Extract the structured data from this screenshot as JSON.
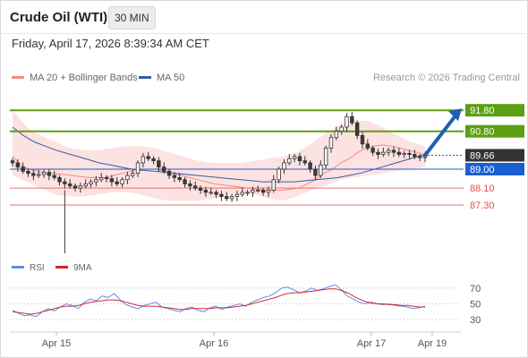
{
  "header": {
    "instrument": "Crude Oil (WTI)",
    "timeframe": "30 MIN",
    "timestamp": "Friday, April 17, 2026 8:39:34 AM CET"
  },
  "legend": {
    "ma20": {
      "label": "MA 20 + Bollinger Bands",
      "color": "#f28b82"
    },
    "ma50": {
      "label": "MA 50",
      "color": "#2f5f9e"
    },
    "credit": "Research © 2026 Trading Central"
  },
  "rsi_legend": {
    "rsi": {
      "label": "RSI",
      "color": "#5b8def"
    },
    "ma9": {
      "label": "9MA",
      "color": "#d62728"
    }
  },
  "colors": {
    "resistance": "#5aa012",
    "pivot": "#1a5fd1",
    "support": "#e57373",
    "last_price": "#333333",
    "arrow": "#1f5fb3",
    "band_fill": "#fde2e2",
    "bull": "#3a3a3a",
    "bear": "#3a3a3a"
  },
  "chart_data": {
    "type": "candlestick",
    "x_ticks": [
      "Apr 15",
      "Apr 16",
      "Apr 17",
      "Apr 19"
    ],
    "price_range": [
      85.0,
      93.0
    ],
    "levels": {
      "resistance": [
        91.8,
        90.8
      ],
      "last": 89.66,
      "pivot": 89.0,
      "support": [
        88.1,
        87.3
      ]
    },
    "level_labels": {
      "r1": "91.80",
      "r2": "90.80",
      "last": "89.66",
      "pivot": "89.00",
      "s1": "88.10",
      "s2": "87.30"
    },
    "bias": "bullish",
    "close": [
      89.3,
      89.1,
      88.9,
      88.8,
      88.7,
      88.75,
      88.85,
      88.7,
      88.6,
      88.4,
      88.3,
      88.2,
      88.1,
      88.2,
      88.3,
      88.4,
      88.5,
      88.6,
      88.55,
      88.4,
      88.3,
      88.5,
      88.7,
      88.8,
      89.3,
      89.6,
      89.5,
      89.4,
      89.1,
      88.9,
      88.7,
      88.6,
      88.5,
      88.3,
      88.2,
      88.1,
      88.0,
      87.9,
      87.9,
      87.8,
      87.7,
      87.6,
      87.7,
      87.8,
      87.9,
      87.9,
      88.0,
      88.0,
      87.9,
      88.0,
      88.5,
      89.0,
      89.3,
      89.5,
      89.6,
      89.4,
      89.3,
      89.0,
      88.7,
      89.2,
      90.0,
      90.5,
      90.8,
      91.0,
      91.5,
      91.2,
      90.6,
      90.2,
      90.0,
      89.8,
      89.7,
      89.8,
      89.9,
      89.8,
      89.7,
      89.75,
      89.7,
      89.6,
      89.55,
      89.66
    ],
    "ma20": [
      89.6,
      89.2,
      89.0,
      88.9,
      88.8,
      88.8,
      88.75,
      88.7,
      88.65,
      88.6,
      88.6,
      88.6,
      88.7,
      88.8,
      88.9,
      89.0,
      89.0,
      89.0,
      88.9,
      88.8,
      88.7,
      88.6,
      88.5,
      88.4,
      88.3,
      88.25,
      88.2,
      88.15,
      88.1,
      88.05,
      88.0,
      88.0,
      88.0,
      88.05,
      88.1,
      88.3,
      88.5,
      88.8,
      89.0,
      89.3,
      89.5,
      89.8,
      90.0,
      90.1,
      90.15,
      90.1,
      90.0,
      89.9,
      89.8,
      89.7
    ],
    "ma50": [
      91.0,
      90.6,
      90.3,
      90.1,
      89.9,
      89.75,
      89.6,
      89.45,
      89.3,
      89.2,
      89.1,
      89.0,
      88.95,
      88.9,
      88.85,
      88.8,
      88.75,
      88.7,
      88.65,
      88.6,
      88.55,
      88.5,
      88.45,
      88.4,
      88.4,
      88.4,
      88.4,
      88.45,
      88.5,
      88.55,
      88.6,
      88.7,
      88.8,
      88.95,
      89.1,
      89.25,
      89.4,
      89.55,
      89.7
    ],
    "bb_upper": [
      91.8,
      91.0,
      90.6,
      90.3,
      90.0,
      89.9,
      89.9,
      90.0,
      90.1,
      90.1,
      90.0,
      89.8,
      89.6,
      89.4,
      89.3,
      89.3,
      89.3,
      89.4,
      89.5,
      89.6,
      89.8,
      90.2,
      90.7,
      91.1,
      91.3,
      91.3,
      91.0,
      90.6,
      90.3,
      90.1
    ],
    "bb_lower": [
      88.7,
      88.4,
      88.1,
      87.8,
      87.7,
      87.7,
      87.8,
      87.9,
      87.9,
      87.8,
      87.6,
      87.5,
      87.5,
      87.5,
      87.6,
      87.7,
      87.8,
      87.8,
      87.6,
      87.5,
      87.7,
      88.0,
      88.2,
      88.5,
      88.6,
      88.7,
      88.8,
      88.9,
      89.0,
      89.1
    ],
    "rsi": {
      "y_ticks": [
        70,
        50,
        30
      ],
      "y_range": [
        20,
        80
      ],
      "rsi": [
        42,
        38,
        35,
        36,
        34,
        40,
        44,
        41,
        46,
        50,
        48,
        44,
        52,
        56,
        54,
        60,
        58,
        63,
        55,
        49,
        46,
        44,
        48,
        50,
        52,
        46,
        44,
        42,
        40,
        44,
        46,
        42,
        40,
        45,
        47,
        43,
        46,
        48,
        50,
        47,
        52,
        55,
        58,
        60,
        64,
        70,
        71,
        68,
        64,
        66,
        70,
        67,
        69,
        72,
        74,
        68,
        60,
        56,
        52,
        50,
        52,
        50,
        49,
        50,
        48,
        47,
        46,
        44,
        45,
        47
      ],
      "ma9": [
        40,
        39,
        38,
        37,
        38,
        40,
        42,
        44,
        46,
        47,
        47,
        48,
        50,
        52,
        53,
        54,
        55,
        55,
        54,
        52,
        50,
        48,
        47,
        47,
        47,
        46,
        45,
        44,
        43,
        43,
        44,
        44,
        44,
        44,
        45,
        45,
        45,
        46,
        47,
        48,
        50,
        52,
        54,
        56,
        58,
        61,
        63,
        64,
        64,
        65,
        66,
        67,
        68,
        69,
        69,
        67,
        64,
        60,
        56,
        53,
        51,
        50,
        50,
        49,
        49,
        48,
        48,
        47,
        46,
        46
      ]
    }
  }
}
